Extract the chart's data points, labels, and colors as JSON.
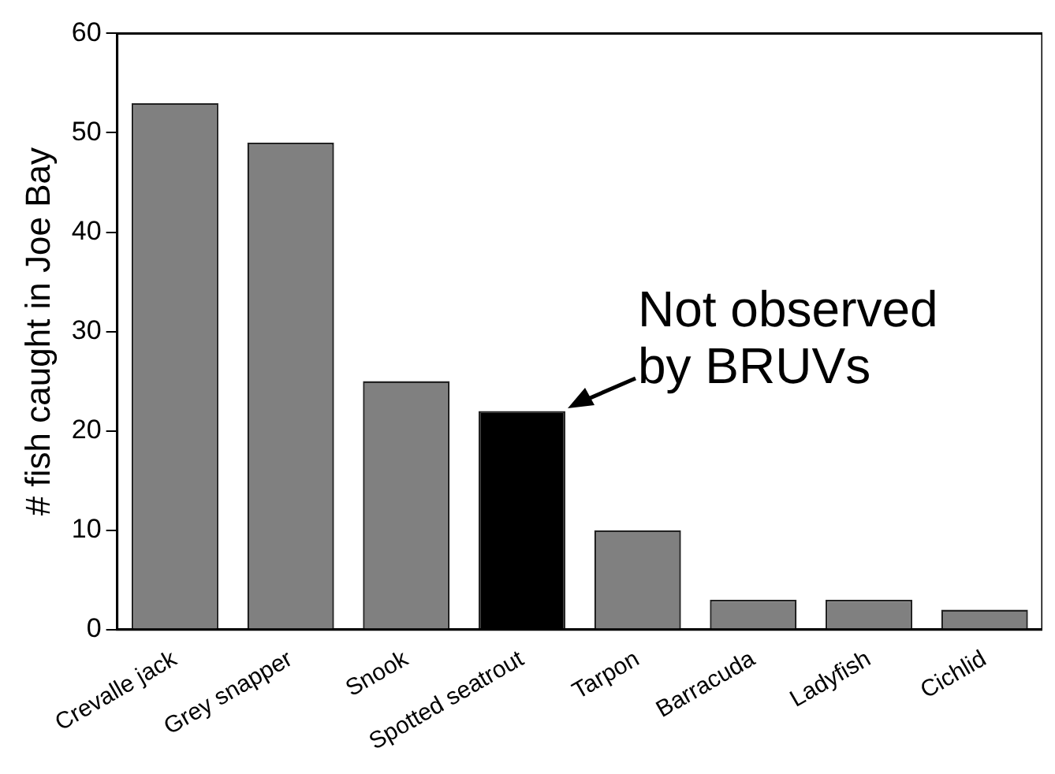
{
  "chart_data": {
    "type": "bar",
    "ylabel": "# fish caught in Joe Bay",
    "categories": [
      "Crevalle jack",
      "Grey snapper",
      "Snook",
      "Spotted seatrout",
      "Tarpon",
      "Barracuda",
      "Ladyfish",
      "Cichlid"
    ],
    "values": [
      53,
      49,
      25,
      22,
      10,
      3,
      3,
      2
    ],
    "colors": [
      "#808080",
      "#808080",
      "#808080",
      "#000000",
      "#808080",
      "#808080",
      "#808080",
      "#808080"
    ],
    "ylim": [
      0,
      60
    ],
    "yticks": [
      0,
      10,
      20,
      30,
      40,
      50,
      60
    ],
    "grid": false,
    "legend": false,
    "annotations": [
      "Not observed\nby BRUVs"
    ]
  }
}
